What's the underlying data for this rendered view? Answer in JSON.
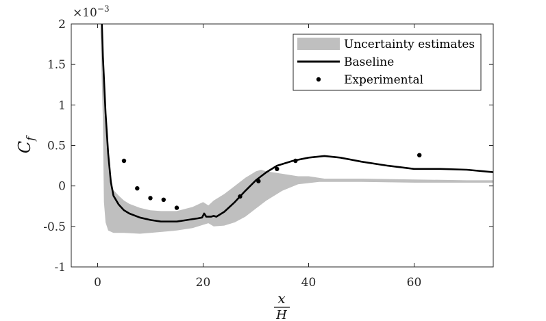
{
  "chart_data": {
    "type": "line",
    "title": "",
    "xlabel_num": "x",
    "xlabel_den": "H",
    "ylabel_main": "C",
    "ylabel_sub": "f",
    "exponent_prefix": "×10",
    "exponent_power": "−3",
    "xlim": [
      -5,
      75
    ],
    "ylim": [
      -1,
      2
    ],
    "xticks": [
      0,
      20,
      40,
      60
    ],
    "xtick_labels": [
      "0",
      "20",
      "40",
      "60"
    ],
    "yticks": [
      -1,
      -0.5,
      0,
      0.5,
      1,
      1.5,
      2
    ],
    "ytick_labels": [
      "-1",
      "-0.5",
      "0",
      "0.5",
      "1",
      "1.5",
      "2"
    ],
    "grid": false,
    "legend_position": "top-right",
    "series": [
      {
        "name": "Uncertainty estimates",
        "kind": "band",
        "color": "#bfbfbf",
        "upper": [
          [
            0.5,
            2
          ],
          [
            1,
            1.4
          ],
          [
            1.5,
            0.8
          ],
          [
            2,
            0.3
          ],
          [
            2.5,
            0.05
          ],
          [
            3,
            -0.05
          ],
          [
            4,
            -0.12
          ],
          [
            5,
            -0.18
          ],
          [
            6,
            -0.22
          ],
          [
            8,
            -0.27
          ],
          [
            10,
            -0.3
          ],
          [
            12,
            -0.31
          ],
          [
            15,
            -0.31
          ],
          [
            18,
            -0.26
          ],
          [
            20,
            -0.2
          ],
          [
            21,
            -0.24
          ],
          [
            22,
            -0.18
          ],
          [
            24,
            -0.1
          ],
          [
            26,
            0.0
          ],
          [
            28,
            0.1
          ],
          [
            30,
            0.18
          ],
          [
            31,
            0.2
          ],
          [
            32,
            0.18
          ],
          [
            35,
            0.15
          ],
          [
            38,
            0.12
          ],
          [
            40,
            0.12
          ],
          [
            43,
            0.09
          ],
          [
            50,
            0.09
          ],
          [
            60,
            0.08
          ],
          [
            70,
            0.07
          ],
          [
            75,
            0.07
          ]
        ],
        "lower": [
          [
            0.5,
            2
          ],
          [
            1,
            0.8
          ],
          [
            1.2,
            -0.2
          ],
          [
            1.5,
            -0.45
          ],
          [
            2,
            -0.55
          ],
          [
            3,
            -0.58
          ],
          [
            5,
            -0.58
          ],
          [
            8,
            -0.59
          ],
          [
            10,
            -0.58
          ],
          [
            15,
            -0.55
          ],
          [
            18,
            -0.52
          ],
          [
            20,
            -0.48
          ],
          [
            21,
            -0.46
          ],
          [
            22,
            -0.5
          ],
          [
            24,
            -0.49
          ],
          [
            26,
            -0.45
          ],
          [
            28,
            -0.38
          ],
          [
            30,
            -0.28
          ],
          [
            32,
            -0.18
          ],
          [
            35,
            -0.06
          ],
          [
            38,
            0.02
          ],
          [
            42,
            0.05
          ],
          [
            50,
            0.05
          ],
          [
            60,
            0.04
          ],
          [
            75,
            0.04
          ]
        ]
      },
      {
        "name": "Baseline",
        "kind": "line",
        "color": "#000000",
        "points": [
          [
            0.8,
            2
          ],
          [
            1,
            1.6
          ],
          [
            1.5,
            0.9
          ],
          [
            2,
            0.4
          ],
          [
            2.5,
            0.05
          ],
          [
            3,
            -0.12
          ],
          [
            4,
            -0.23
          ],
          [
            5,
            -0.3
          ],
          [
            6,
            -0.34
          ],
          [
            8,
            -0.39
          ],
          [
            10,
            -0.42
          ],
          [
            12,
            -0.44
          ],
          [
            15,
            -0.44
          ],
          [
            17,
            -0.42
          ],
          [
            19,
            -0.4
          ],
          [
            19.8,
            -0.39
          ],
          [
            20.2,
            -0.34
          ],
          [
            20.6,
            -0.38
          ],
          [
            21.5,
            -0.38
          ],
          [
            22,
            -0.37
          ],
          [
            22.5,
            -0.38
          ],
          [
            24,
            -0.32
          ],
          [
            26,
            -0.2
          ],
          [
            28,
            -0.06
          ],
          [
            30,
            0.07
          ],
          [
            32,
            0.17
          ],
          [
            34,
            0.25
          ],
          [
            37,
            0.31
          ],
          [
            40,
            0.35
          ],
          [
            43,
            0.37
          ],
          [
            46,
            0.35
          ],
          [
            50,
            0.3
          ],
          [
            55,
            0.25
          ],
          [
            60,
            0.21
          ],
          [
            65,
            0.21
          ],
          [
            70,
            0.2
          ],
          [
            75,
            0.17
          ]
        ]
      },
      {
        "name": "Experimental",
        "kind": "scatter",
        "color": "#000000",
        "points": [
          [
            5,
            0.31
          ],
          [
            7.5,
            -0.03
          ],
          [
            10,
            -0.15
          ],
          [
            12.5,
            -0.17
          ],
          [
            15,
            -0.27
          ],
          [
            27,
            -0.13
          ],
          [
            30.5,
            0.06
          ],
          [
            34,
            0.21
          ],
          [
            37.5,
            0.31
          ],
          [
            61,
            0.38
          ]
        ]
      }
    ]
  }
}
